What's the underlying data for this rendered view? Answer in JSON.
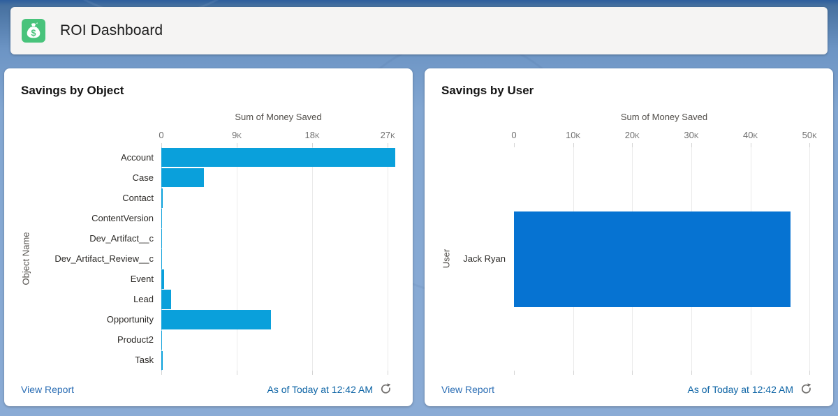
{
  "header": {
    "title": "ROI Dashboard",
    "icon": "money-bag-icon"
  },
  "colors": {
    "icon_bg": "#48c37b",
    "link": "#2a6db4",
    "asof": "#0d64a5"
  },
  "cards": [
    {
      "title": "Savings by Object",
      "footer": {
        "view_report": "View Report",
        "as_of": "As of Today at 12:42 AM",
        "refresh_icon": "refresh-icon"
      }
    },
    {
      "title": "Savings by User",
      "footer": {
        "view_report": "View Report",
        "as_of": "As of Today at 12:42 AM",
        "refresh_icon": "refresh-icon"
      }
    }
  ],
  "chart_data": [
    {
      "type": "bar",
      "orientation": "horizontal",
      "title": "Savings by Object",
      "xlabel": "Sum of Money Saved",
      "ylabel": "Object Name",
      "categories": [
        "Account",
        "Case",
        "Contact",
        "ContentVersion",
        "Dev_Artifact__c",
        "Dev_Artifact_Review__c",
        "Event",
        "Lead",
        "Opportunity",
        "Product2",
        "Task"
      ],
      "values": [
        27900,
        5100,
        150,
        100,
        60,
        60,
        300,
        1200,
        13100,
        40,
        200
      ],
      "xlim": [
        0,
        27900
      ],
      "ticks": [
        {
          "value": 0,
          "label": "0"
        },
        {
          "value": 9000,
          "label": "9K"
        },
        {
          "value": 18000,
          "label": "18K"
        },
        {
          "value": 27000,
          "label": "27K"
        }
      ],
      "grid": true,
      "legend": false,
      "bar_color": "#0aa0db"
    },
    {
      "type": "bar",
      "orientation": "horizontal",
      "title": "Savings by User",
      "xlabel": "Sum of Money Saved",
      "ylabel": "User",
      "categories": [
        "Jack Ryan"
      ],
      "values": [
        46800
      ],
      "xlim": [
        0,
        50800
      ],
      "ticks": [
        {
          "value": 0,
          "label": "0"
        },
        {
          "value": 10000,
          "label": "10K"
        },
        {
          "value": 20000,
          "label": "20K"
        },
        {
          "value": 30000,
          "label": "30K"
        },
        {
          "value": 40000,
          "label": "40K"
        },
        {
          "value": 50000,
          "label": "50K"
        }
      ],
      "grid": true,
      "legend": false,
      "bar_color": "#0673d2"
    }
  ]
}
